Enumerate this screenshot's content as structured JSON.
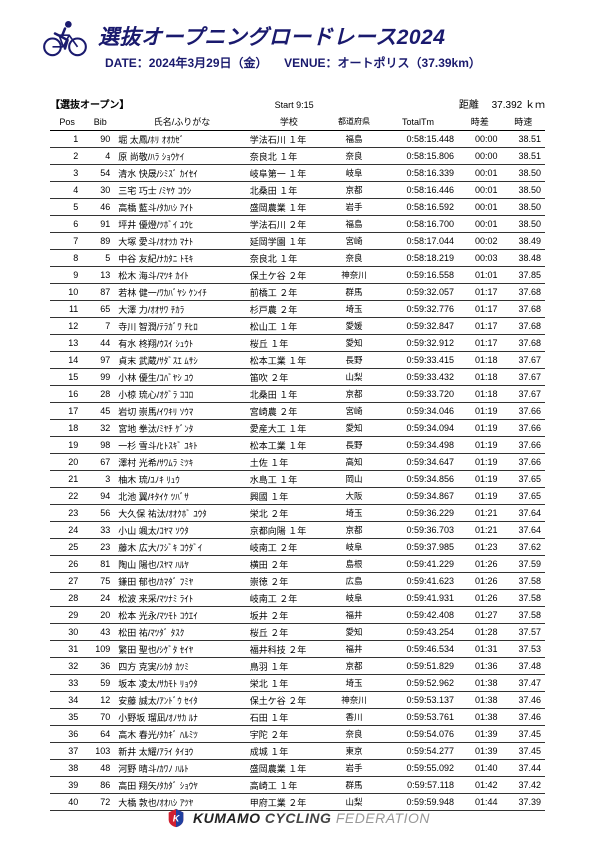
{
  "header": {
    "title": "選抜オープニングロードレース2024",
    "subtitle_date_label": "DATE：2024年3月29日（金）",
    "subtitle_venue_label": "VENUE：オートポリス（37.39km）"
  },
  "meta": {
    "category": "【選抜オープン】",
    "start_label": "Start 9:15",
    "distance_label": "距離",
    "distance_value": "37.392 ｋｍ"
  },
  "columns": {
    "pos": "Pos",
    "bib": "Bib",
    "name": "氏名/ふりがな",
    "school": "学校",
    "pref": "都道府県",
    "totaltm": "TotalTm",
    "gap": "時差",
    "speed": "時速"
  },
  "rows": [
    {
      "pos": "1",
      "bib": "90",
      "name": "堀 太鳳/ﾎﾘ ｵｵｶｾﾞ",
      "school": "学法石川 １年",
      "pref": "福島",
      "tm": "0:58:15.448",
      "gap": "00:00",
      "spd": "38.51"
    },
    {
      "pos": "2",
      "bib": "4",
      "name": "原 尚敬/ﾊﾗ ｼｮｳｹｲ",
      "school": "奈良北 １年",
      "pref": "奈良",
      "tm": "0:58:15.806",
      "gap": "00:00",
      "spd": "38.51"
    },
    {
      "pos": "3",
      "bib": "54",
      "name": "清水 快晟/ｼﾐｽﾞ ｶｲｾｲ",
      "school": "岐阜第一 １年",
      "pref": "岐阜",
      "tm": "0:58:16.339",
      "gap": "00:01",
      "spd": "38.50"
    },
    {
      "pos": "4",
      "bib": "30",
      "name": "三宅 巧士 /ﾐﾔｹ ｺｳｼ",
      "school": "北桑田 １年",
      "pref": "京都",
      "tm": "0:58:16.446",
      "gap": "00:01",
      "spd": "38.50"
    },
    {
      "pos": "5",
      "bib": "46",
      "name": "高橋 藍斗/ﾀｶﾊｼ ｱｲﾄ",
      "school": "盛岡農業 １年",
      "pref": "岩手",
      "tm": "0:58:16.592",
      "gap": "00:01",
      "spd": "38.50"
    },
    {
      "pos": "6",
      "bib": "91",
      "name": "坪井 優燈/ﾂﾎﾞｲ ﾕｳﾋ",
      "school": "学法石川 ２年",
      "pref": "福島",
      "tm": "0:58:16.700",
      "gap": "00:01",
      "spd": "38.50"
    },
    {
      "pos": "7",
      "bib": "89",
      "name": "大塚 愛斗/ｵｵﾂｶ ﾏﾅﾄ",
      "school": "延岡学園 １年",
      "pref": "宮崎",
      "tm": "0:58:17.044",
      "gap": "00:02",
      "spd": "38.49"
    },
    {
      "pos": "8",
      "bib": "5",
      "name": "中谷 友紀/ﾅｶﾀﾆ ﾄﾓｷ",
      "school": "奈良北 １年",
      "pref": "奈良",
      "tm": "0:58:18.219",
      "gap": "00:03",
      "spd": "38.48"
    },
    {
      "pos": "9",
      "bib": "13",
      "name": "松木 海斗/ﾏﾂｷ ｶｲﾄ",
      "school": "保土ケ谷 ２年",
      "pref": "神奈川",
      "tm": "0:59:16.558",
      "gap": "01:01",
      "spd": "37.85"
    },
    {
      "pos": "10",
      "bib": "87",
      "name": "若林 健一/ﾜｶﾊﾞﾔｼ ｹﾝｲﾁ",
      "school": "前橋工 ２年",
      "pref": "群馬",
      "tm": "0:59:32.057",
      "gap": "01:17",
      "spd": "37.68"
    },
    {
      "pos": "11",
      "bib": "65",
      "name": "大澤 力/ｵｵｻﾜ ﾁｶﾗ",
      "school": "杉戸農 ２年",
      "pref": "埼玉",
      "tm": "0:59:32.776",
      "gap": "01:17",
      "spd": "37.68"
    },
    {
      "pos": "12",
      "bib": "7",
      "name": "寺川 智潤/ﾃﾗｶﾞﾜ ﾁﾋﾛ",
      "school": "松山工 １年",
      "pref": "愛媛",
      "tm": "0:59:32.847",
      "gap": "01:17",
      "spd": "37.68"
    },
    {
      "pos": "13",
      "bib": "44",
      "name": "有水 柊翔/ｳｽｲ ｼｭｳﾄ",
      "school": "桜丘 １年",
      "pref": "愛知",
      "tm": "0:59:32.912",
      "gap": "01:17",
      "spd": "37.68"
    },
    {
      "pos": "14",
      "bib": "97",
      "name": "貞末 武蔵/ｻﾀﾞｽｴ ﾑｻｼ",
      "school": "松本工業 １年",
      "pref": "長野",
      "tm": "0:59:33.415",
      "gap": "01:18",
      "spd": "37.67"
    },
    {
      "pos": "15",
      "bib": "99",
      "name": "小林 優生/ｺﾊﾞﾔｼ ﾕｳ",
      "school": "笛吹 ２年",
      "pref": "山梨",
      "tm": "0:59:33.432",
      "gap": "01:18",
      "spd": "37.67"
    },
    {
      "pos": "16",
      "bib": "28",
      "name": "小椋 琉心/ｵｸﾞﾗ ｺｺﾛ",
      "school": "北桑田 １年",
      "pref": "京都",
      "tm": "0:59:33.720",
      "gap": "01:18",
      "spd": "37.67"
    },
    {
      "pos": "17",
      "bib": "45",
      "name": "岩切 崇馬/ｲﾜｷﾘ ｿｳﾏ",
      "school": "宮崎農 ２年",
      "pref": "宮崎",
      "tm": "0:59:34.046",
      "gap": "01:19",
      "spd": "37.66"
    },
    {
      "pos": "18",
      "bib": "32",
      "name": "宮地 拳汰/ﾐﾔﾁ ｹﾞﾝﾀ",
      "school": "愛産大工 １年",
      "pref": "愛知",
      "tm": "0:59:34.094",
      "gap": "01:19",
      "spd": "37.66"
    },
    {
      "pos": "19",
      "bib": "98",
      "name": "一杉 雪斗/ﾋﾄｽｷﾞ ﾕｷﾄ",
      "school": "松本工業 １年",
      "pref": "長野",
      "tm": "0:59:34.498",
      "gap": "01:19",
      "spd": "37.66"
    },
    {
      "pos": "20",
      "bib": "67",
      "name": "澤村 光希/ｻﾜﾑﾗ ﾐﾂｷ",
      "school": "土佐 １年",
      "pref": "高知",
      "tm": "0:59:34.647",
      "gap": "01:19",
      "spd": "37.66"
    },
    {
      "pos": "21",
      "bib": "3",
      "name": "柚木 琉/ﾕﾉｷ ﾘｭｳ",
      "school": "水島工 １年",
      "pref": "岡山",
      "tm": "0:59:34.856",
      "gap": "01:19",
      "spd": "37.65"
    },
    {
      "pos": "22",
      "bib": "94",
      "name": "北池 翼/ｷﾀｲｹ ﾂﾊﾞｻ",
      "school": "興國 １年",
      "pref": "大阪",
      "tm": "0:59:34.867",
      "gap": "01:19",
      "spd": "37.65"
    },
    {
      "pos": "23",
      "bib": "56",
      "name": "大久保 祐汰/ｵｵｸﾎﾞ ﾕｳﾀ",
      "school": "栄北 ２年",
      "pref": "埼玉",
      "tm": "0:59:36.229",
      "gap": "01:21",
      "spd": "37.64"
    },
    {
      "pos": "24",
      "bib": "33",
      "name": "小山 颯太/ｺﾔﾏ ｿｳﾀ",
      "school": "京都向陽 １年",
      "pref": "京都",
      "tm": "0:59:36.703",
      "gap": "01:21",
      "spd": "37.64"
    },
    {
      "pos": "25",
      "bib": "23",
      "name": "藤木 広大/ﾌｼﾞｷ ｺｳﾀﾞｲ",
      "school": "岐南工 ２年",
      "pref": "岐阜",
      "tm": "0:59:37.985",
      "gap": "01:23",
      "spd": "37.62"
    },
    {
      "pos": "26",
      "bib": "81",
      "name": "陶山 陽也/ｽﾔﾏ ﾊﾙﾔ",
      "school": "横田 ２年",
      "pref": "島根",
      "tm": "0:59:41.229",
      "gap": "01:26",
      "spd": "37.59"
    },
    {
      "pos": "27",
      "bib": "75",
      "name": "鎌田 郁也/ｶﾏﾀﾞ ﾌﾐﾔ",
      "school": "崇徳 ２年",
      "pref": "広島",
      "tm": "0:59:41.623",
      "gap": "01:26",
      "spd": "37.58"
    },
    {
      "pos": "28",
      "bib": "24",
      "name": "松波 来采/ﾏﾂﾅﾐ ﾗｲﾄ",
      "school": "岐南工 ２年",
      "pref": "岐阜",
      "tm": "0:59:41.931",
      "gap": "01:26",
      "spd": "37.58"
    },
    {
      "pos": "29",
      "bib": "20",
      "name": "松本 光永/ﾏﾂﾓﾄ ｺｳｴｲ",
      "school": "坂井 ２年",
      "pref": "福井",
      "tm": "0:59:42.408",
      "gap": "01:27",
      "spd": "37.58"
    },
    {
      "pos": "30",
      "bib": "43",
      "name": "松田 祐/ﾏﾂﾀﾞ ﾀｽｸ",
      "school": "桜丘 ２年",
      "pref": "愛知",
      "tm": "0:59:43.254",
      "gap": "01:28",
      "spd": "37.57"
    },
    {
      "pos": "31",
      "bib": "109",
      "name": "繁田 聖也/ｼｹﾞﾀ ｾｲﾔ",
      "school": "福井科技 ２年",
      "pref": "福井",
      "tm": "0:59:46.534",
      "gap": "01:31",
      "spd": "37.53"
    },
    {
      "pos": "32",
      "bib": "36",
      "name": "四方 克実/ｼｶﾀ ｶﾂﾐ",
      "school": "鳥羽 １年",
      "pref": "京都",
      "tm": "0:59:51.829",
      "gap": "01:36",
      "spd": "37.48"
    },
    {
      "pos": "33",
      "bib": "59",
      "name": "坂本 凌太/ｻｶﾓﾄ ﾘｮｳﾀ",
      "school": "栄北 １年",
      "pref": "埼玉",
      "tm": "0:59:52.962",
      "gap": "01:38",
      "spd": "37.47"
    },
    {
      "pos": "34",
      "bib": "12",
      "name": "安藤 誠太/ｱﾝﾄﾞｳ ｾｲﾀ",
      "school": "保土ケ谷 ２年",
      "pref": "神奈川",
      "tm": "0:59:53.137",
      "gap": "01:38",
      "spd": "37.46"
    },
    {
      "pos": "35",
      "bib": "70",
      "name": "小野坂 瑠凪/ｵﾉｻｶ ﾙﾅ",
      "school": "石田 １年",
      "pref": "香川",
      "tm": "0:59:53.761",
      "gap": "01:38",
      "spd": "37.46"
    },
    {
      "pos": "36",
      "bib": "64",
      "name": "高木 春光/ﾀｶｷﾞ ﾊﾙﾐﾂ",
      "school": "宇陀 ２年",
      "pref": "奈良",
      "tm": "0:59:54.076",
      "gap": "01:39",
      "spd": "37.45"
    },
    {
      "pos": "37",
      "bib": "103",
      "name": "新井 太耀/ｱﾗｲ ﾀｲﾖｳ",
      "school": "成城 １年",
      "pref": "東京",
      "tm": "0:59:54.277",
      "gap": "01:39",
      "spd": "37.45"
    },
    {
      "pos": "38",
      "bib": "48",
      "name": "河野 晴斗/ｶﾜﾉ ﾊﾙﾄ",
      "school": "盛岡農業 １年",
      "pref": "岩手",
      "tm": "0:59:55.092",
      "gap": "01:40",
      "spd": "37.44"
    },
    {
      "pos": "39",
      "bib": "86",
      "name": "高田 翔矢/ﾀｶﾀﾞ ｼｮｳﾔ",
      "school": "高崎工 １年",
      "pref": "群馬",
      "tm": "0:59:57.118",
      "gap": "01:42",
      "spd": "37.42"
    },
    {
      "pos": "40",
      "bib": "72",
      "name": "大橋 敦也/ｵｵﾊｼ ｱﾂﾔ",
      "school": "甲府工業 ２年",
      "pref": "山梨",
      "tm": "0:59:59.948",
      "gap": "01:44",
      "spd": "37.39"
    }
  ],
  "footer": {
    "brand1": "KUMAMO",
    "brand2": " CYCLING ",
    "brand3": "FEDERATION"
  }
}
